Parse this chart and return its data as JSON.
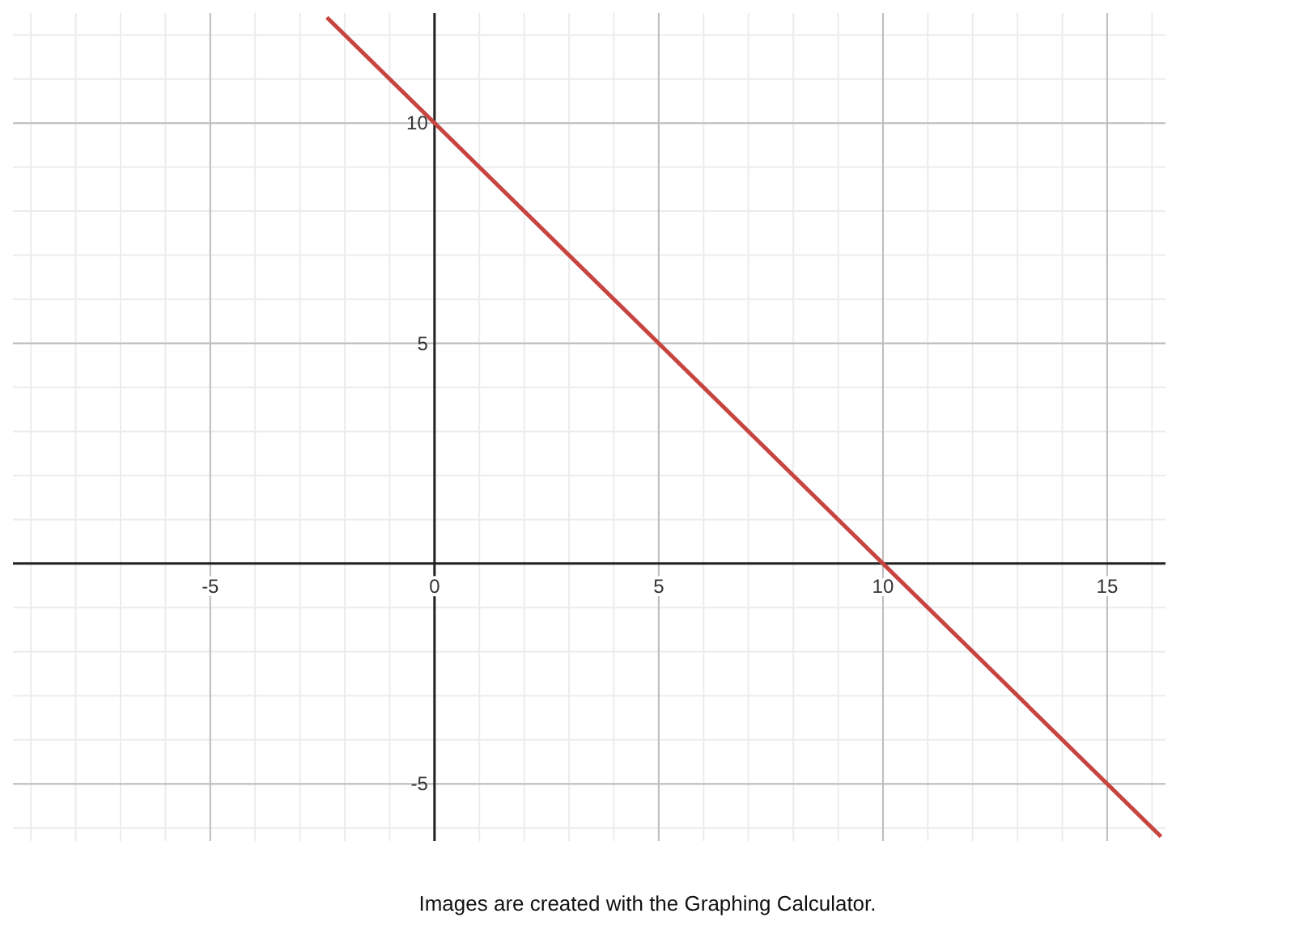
{
  "chart_data": {
    "type": "line",
    "x": [
      -2.4,
      16.2
    ],
    "series": [
      {
        "color": "#c74440",
        "values": [
          12.4,
          -6.2
        ]
      }
    ],
    "xlim": [
      -9.4,
      16.3
    ],
    "ylim": [
      -6.3,
      12.5
    ],
    "xticks": [
      -5,
      0,
      5,
      10,
      15
    ],
    "yticks": [
      -5,
      5,
      10
    ],
    "grid": true,
    "marker": "none",
    "line_style": "solid",
    "annotations": [
      "Images are created with the Graphing Calculator."
    ]
  }
}
